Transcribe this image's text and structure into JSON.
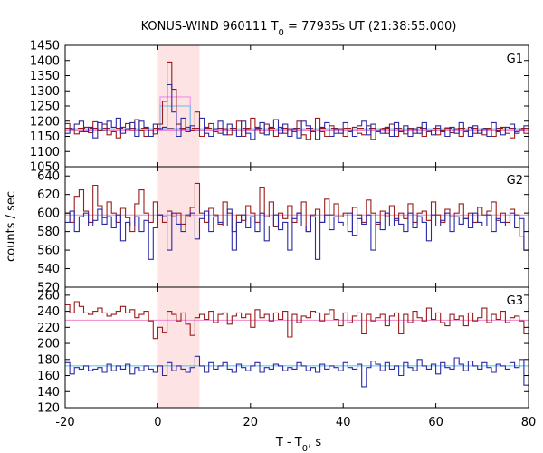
{
  "chart_data": {
    "type": "line",
    "title_main": "KONUS-WIND 960111 T",
    "title_sub": "0",
    "title_rest": " = 77935s UT (21:38:55.000)",
    "xlabel_main": "T - T",
    "xlabel_sub": "0",
    "xlabel_rest": ", s",
    "ylabel": "counts / sec",
    "xlim": [
      -20,
      80
    ],
    "xticks": [
      -20,
      0,
      20,
      40,
      60,
      80
    ],
    "highlight_interval": [
      0,
      9
    ],
    "bin_width": 2,
    "bin_start": -20,
    "colors": {
      "series_red": "#9b1c1c",
      "series_blue": "#2a2aa8",
      "fit_red": "#ee88cc",
      "fit_blue": "#55bbee",
      "highlight": "#fde3e3",
      "fluence_red": "#ee88ee",
      "fluence_blue": "#66bbee"
    },
    "panels": [
      {
        "name": "G1",
        "ylim": [
          1050,
          1450
        ],
        "yticks": [
          1050,
          1100,
          1150,
          1200,
          1250,
          1300,
          1350,
          1400,
          1450
        ],
        "series": [
          {
            "values": [
              1192,
              1175,
              1158,
              1165,
              1180,
              1162,
              1198,
              1168,
              1190,
              1155,
              1165,
              1145,
              1180,
              1192,
              1170,
              1205,
              1168,
              1150,
              1170,
              1158,
              1190,
              1265,
              1395,
              1305,
              1190,
              1175,
              1180,
              1168,
              1230,
              1150,
              1180,
              1192,
              1165,
              1160,
              1175,
              1155,
              1170,
              1200,
              1150,
              1175,
              1210,
              1180,
              1160,
              1190,
              1170,
              1150,
              1180,
              1160,
              1175,
              1165,
              1200,
              1155,
              1140,
              1170,
              1210,
              1165,
              1150,
              1185,
              1160,
              1175,
              1150,
              1165,
              1180,
              1160,
              1155,
              1185,
              1140,
              1165,
              1175,
              1160,
              1190,
              1150,
              1170,
              1158,
              1175,
              1160,
              1180,
              1150,
              1165,
              1170,
              1155,
              1168,
              1178,
              1162,
              1175,
              1150,
              1165,
              1180,
              1160,
              1170,
              1155,
              1175,
              1150,
              1168,
              1180,
              1160,
              1145,
              1165,
              1175,
              1160
            ]
          },
          {
            "values": [
              1160,
              1175,
              1190,
              1200,
              1165,
              1180,
              1145,
              1195,
              1170,
              1200,
              1180,
              1210,
              1160,
              1175,
              1195,
              1150,
              1200,
              1180,
              1150,
              1190,
              1175,
              1180,
              1320,
              1230,
              1150,
              1210,
              1165,
              1185,
              1170,
              1210,
              1160,
              1150,
              1175,
              1200,
              1155,
              1190,
              1170,
              1150,
              1200,
              1160,
              1140,
              1175,
              1195,
              1155,
              1180,
              1205,
              1160,
              1190,
              1150,
              1175,
              1145,
              1200,
              1185,
              1165,
              1140,
              1180,
              1195,
              1150,
              1175,
              1160,
              1195,
              1170,
              1150,
              1185,
              1200,
              1155,
              1190,
              1170,
              1160,
              1180,
              1150,
              1195,
              1165,
              1185,
              1150,
              1175,
              1160,
              1195,
              1170,
              1155,
              1185,
              1165,
              1150,
              1180,
              1160,
              1195,
              1170,
              1150,
              1185,
              1160,
              1175,
              1150,
              1195,
              1165,
              1155,
              1180,
              1190,
              1160,
              1170,
              1185
            ]
          }
        ],
        "fit_levels": [
          1168,
          1175
        ],
        "burst_levels": [
          1280,
          1250
        ]
      },
      {
        "name": "G2",
        "ylim": [
          520,
          650
        ],
        "yticks": [
          520,
          540,
          560,
          580,
          600,
          620,
          640
        ],
        "series": [
          {
            "values": [
              600,
              590,
              618,
              625,
              602,
              590,
              630,
              608,
              595,
              612,
              600,
              590,
              605,
              595,
              580,
              610,
              625,
              600,
              590,
              612,
              598,
              590,
              602,
              596,
              600,
              588,
              596,
              606,
              632,
              600,
              590,
              605,
              598,
              588,
              612,
              600,
              580,
              598,
              592,
              608,
              600,
              590,
              628,
              596,
              612,
              585,
              600,
              594,
              608,
              590,
              600,
              612,
              580,
              598,
              604,
              590,
              615,
              598,
              610,
              596,
              600,
              580,
              606,
              598,
              590,
              614,
              600,
              588,
              602,
              596,
              608,
              592,
              600,
              594,
              610,
              590,
              600,
              602,
              592,
              612,
              598,
              590,
              604,
              596,
              600,
              610,
              594,
              600,
              590,
              606,
              598,
              602,
              612,
              592,
              600,
              590,
              604,
              598,
              575,
              560
            ]
          },
          {
            "values": [
              590,
              602,
              580,
              596,
              600,
              586,
              592,
              604,
              588,
              596,
              584,
              598,
              570,
              590,
              586,
              596,
              580,
              592,
              550,
              584,
              598,
              596,
              560,
              600,
              588,
              580,
              598,
              600,
              572,
              594,
              602,
              580,
              596,
              590,
              586,
              604,
              560,
              590,
              598,
              584,
              596,
              580,
              600,
              570,
              586,
              598,
              582,
              590,
              560,
              594,
              600,
              586,
              580,
              596,
              550,
              590,
              598,
              582,
              596,
              590,
              586,
              600,
              576,
              594,
              588,
              598,
              560,
              590,
              582,
              600,
              586,
              594,
              588,
              580,
              600,
              584,
              596,
              590,
              570,
              598,
              586,
              592,
              600,
              580,
              596,
              588,
              594,
              584,
              600,
              590,
              586,
              598,
              580,
              594,
              590,
              586,
              600,
              584,
              594,
              560
            ]
          }
        ],
        "fit_levels": [
          598,
          586
        ]
      },
      {
        "name": "G3",
        "ylim": [
          120,
          270
        ],
        "yticks": [
          120,
          140,
          160,
          180,
          200,
          220,
          240,
          260
        ],
        "series": [
          {
            "values": [
              248,
              238,
              252,
              246,
              238,
              236,
              240,
              244,
              238,
              234,
              236,
              240,
              246,
              238,
              242,
              232,
              236,
              240,
              228,
              206,
              220,
              214,
              240,
              236,
              228,
              238,
              224,
              210,
              232,
              236,
              230,
              240,
              226,
              236,
              238,
              224,
              234,
              238,
              232,
              236,
              220,
              242,
              232,
              236,
              228,
              238,
              230,
              240,
              208,
              236,
              226,
              234,
              232,
              240,
              238,
              228,
              236,
              242,
              230,
              222,
              238,
              226,
              234,
              238,
              212,
              236,
              228,
              232,
              236,
              222,
              234,
              238,
              212,
              236,
              226,
              240,
              232,
              228,
              244,
              230,
              238,
              226,
              222,
              236,
              230,
              234,
              222,
              238,
              228,
              232,
              244,
              226,
              236,
              230,
              240,
              226,
              232,
              234,
              228,
              212
            ]
          },
          {
            "values": [
              176,
              162,
              170,
              168,
              172,
              166,
              168,
              170,
              164,
              174,
              166,
              172,
              168,
              174,
              162,
              170,
              166,
              172,
              168,
              164,
              172,
              160,
              176,
              166,
              172,
              168,
              164,
              170,
              184,
              172,
              164,
              176,
              168,
              172,
              176,
              168,
              164,
              174,
              170,
              166,
              172,
              176,
              164,
              170,
              168,
              174,
              172,
              166,
              170,
              168,
              176,
              172,
              166,
              170,
              164,
              174,
              168,
              172,
              170,
              166,
              176,
              170,
              168,
              174,
              146,
              170,
              178,
              174,
              166,
              176,
              168,
              172,
              160,
              176,
              170,
              166,
              180,
              172,
              168,
              174,
              162,
              176,
              170,
              168,
              182,
              174,
              166,
              178,
              172,
              168,
              176,
              170,
              164,
              174,
              172,
              168,
              176,
              170,
              180,
              148
            ]
          }
        ],
        "fit_levels": [
          229,
          172
        ]
      }
    ]
  }
}
